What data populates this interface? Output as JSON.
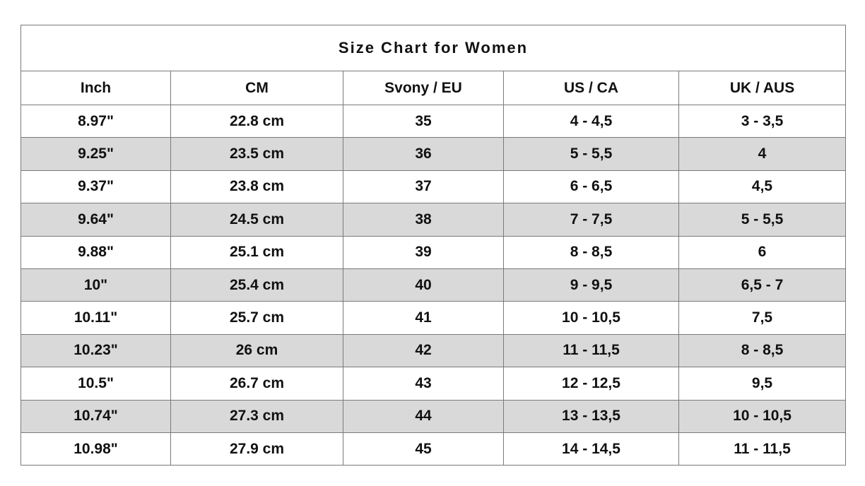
{
  "title": "Size Chart for Women",
  "columns": [
    "Inch",
    "CM",
    "Svony / EU",
    "US / CA",
    "UK / AUS"
  ],
  "rows": [
    [
      "8.97\"",
      "22.8 cm",
      "35",
      "4 - 4,5",
      "3 - 3,5"
    ],
    [
      "9.25\"",
      "23.5 cm",
      "36",
      "5 - 5,5",
      "4"
    ],
    [
      "9.37\"",
      "23.8 cm",
      "37",
      "6 - 6,5",
      "4,5"
    ],
    [
      "9.64\"",
      "24.5 cm",
      "38",
      "7 - 7,5",
      "5 - 5,5"
    ],
    [
      "9.88\"",
      "25.1 cm",
      "39",
      "8 - 8,5",
      "6"
    ],
    [
      "10\"",
      "25.4 cm",
      "40",
      "9 - 9,5",
      "6,5 - 7"
    ],
    [
      "10.11\"",
      "25.7 cm",
      "41",
      "10 - 10,5",
      "7,5"
    ],
    [
      "10.23\"",
      "26 cm",
      "42",
      "11 - 11,5",
      "8 - 8,5"
    ],
    [
      "10.5\"",
      "26.7 cm",
      "43",
      "12 - 12,5",
      "9,5"
    ],
    [
      "10.74\"",
      "27.3 cm",
      "44",
      "13 - 13,5",
      "10 - 10,5"
    ],
    [
      "10.98\"",
      "27.9 cm",
      "45",
      "14 - 14,5",
      "11 - 11,5"
    ]
  ],
  "colors": {
    "stripe": "#d9d9d9",
    "border": "#7a7a7a",
    "text": "#111111"
  }
}
